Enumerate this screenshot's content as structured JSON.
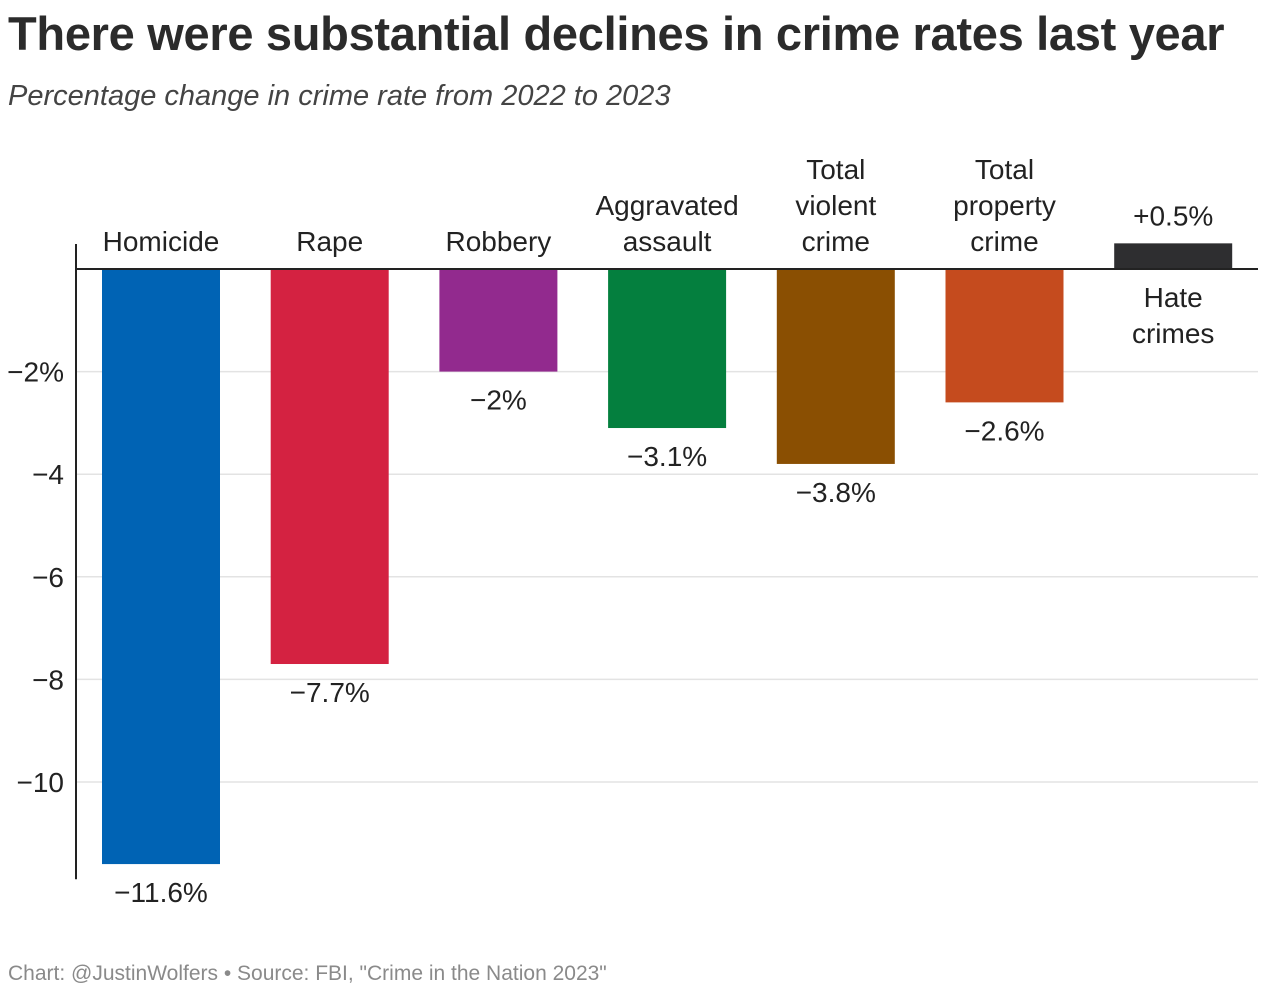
{
  "header": {
    "title": "There were substantial declines in crime rates last year",
    "subtitle": "Percentage change in crime rate from 2022 to 2023"
  },
  "footer": {
    "source": "Chart: @JustinWolfers • Source: FBI, \"Crime in the Nation 2023\""
  },
  "chart_data": {
    "type": "bar",
    "title": "There were substantial declines in crime rates last year",
    "subtitle": "Percentage change in crime rate from 2022 to 2023",
    "xlabel": "",
    "ylabel": "",
    "ylim": [
      -11.7,
      0.5
    ],
    "grid": true,
    "yticks": [
      {
        "value": -2,
        "label": "−2%"
      },
      {
        "value": -4,
        "label": "−4"
      },
      {
        "value": -6,
        "label": "−6"
      },
      {
        "value": -8,
        "label": "−8"
      },
      {
        "value": -10,
        "label": "−10"
      }
    ],
    "categories": [
      {
        "name": "Homicide",
        "lines": [
          "Homicide"
        ],
        "value": -11.6,
        "label": "−11.6%",
        "color": "#0063b4"
      },
      {
        "name": "Rape",
        "lines": [
          "Rape"
        ],
        "value": -7.7,
        "label": "−7.7%",
        "color": "#d42241"
      },
      {
        "name": "Robbery",
        "lines": [
          "Robbery"
        ],
        "value": -2.0,
        "label": "−2%",
        "color": "#922a8e"
      },
      {
        "name": "Aggravated assault",
        "lines": [
          "Aggravated",
          "assault"
        ],
        "value": -3.1,
        "label": "−3.1%",
        "color": "#047f3e"
      },
      {
        "name": "Total violent crime",
        "lines": [
          "Total",
          "violent",
          "crime"
        ],
        "value": -3.8,
        "label": "−3.8%",
        "color": "#8a4f02"
      },
      {
        "name": "Total property crime",
        "lines": [
          "Total",
          "property",
          "crime"
        ],
        "value": -2.6,
        "label": "−2.6%",
        "color": "#c54b1e"
      },
      {
        "name": "Hate crimes",
        "lines": [
          "Hate",
          "crimes"
        ],
        "value": 0.5,
        "label": "+0.5%",
        "color": "#2e2e30"
      }
    ]
  }
}
